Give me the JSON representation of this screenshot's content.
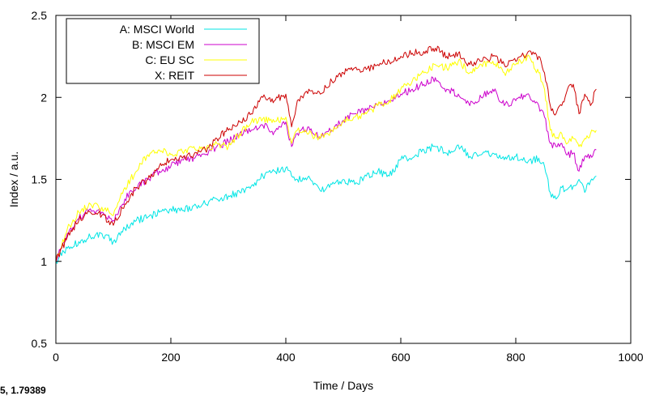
{
  "status_readout": "5, 1.79389",
  "colors": {
    "A": "#00e5e5",
    "B": "#cc00cc",
    "C": "#ffff00",
    "X": "#cc0000",
    "frame": "#000000"
  },
  "chart_data": {
    "type": "line",
    "title": "",
    "xlabel": "Time / Days",
    "ylabel": "Index / a.u.",
    "xlim": [
      0,
      1000
    ],
    "ylim": [
      0.5,
      2.5
    ],
    "xticks": [
      0,
      200,
      400,
      600,
      800,
      1000
    ],
    "xtick_labels": [
      "0",
      "200",
      "400",
      "600",
      "800",
      "1000"
    ],
    "yticks": [
      0.5,
      1,
      1.5,
      2,
      2.5
    ],
    "ytick_labels": [
      "0.5",
      "1",
      "1.5",
      "2",
      "2.5"
    ],
    "grid": false,
    "legend_position": "top-left",
    "x": [
      0,
      20,
      40,
      60,
      80,
      100,
      120,
      140,
      160,
      180,
      200,
      220,
      240,
      260,
      280,
      300,
      320,
      340,
      360,
      380,
      400,
      410,
      420,
      440,
      460,
      480,
      500,
      520,
      540,
      560,
      580,
      600,
      620,
      640,
      660,
      680,
      700,
      720,
      740,
      760,
      780,
      800,
      820,
      840,
      850,
      860,
      870,
      880,
      890,
      900,
      910,
      920,
      930,
      940
    ],
    "series": [
      {
        "name": "A: MSCI World",
        "color_key": "A",
        "values": [
          1.0,
          1.08,
          1.12,
          1.15,
          1.17,
          1.12,
          1.2,
          1.25,
          1.27,
          1.3,
          1.32,
          1.31,
          1.34,
          1.35,
          1.38,
          1.4,
          1.42,
          1.46,
          1.52,
          1.55,
          1.57,
          1.52,
          1.5,
          1.52,
          1.43,
          1.47,
          1.5,
          1.47,
          1.52,
          1.55,
          1.52,
          1.62,
          1.63,
          1.68,
          1.7,
          1.66,
          1.71,
          1.64,
          1.65,
          1.66,
          1.62,
          1.64,
          1.6,
          1.63,
          1.58,
          1.42,
          1.38,
          1.45,
          1.44,
          1.46,
          1.5,
          1.42,
          1.49,
          1.52
        ]
      },
      {
        "name": "B: MSCI EM",
        "color_key": "B",
        "values": [
          1.0,
          1.17,
          1.26,
          1.32,
          1.3,
          1.25,
          1.38,
          1.45,
          1.5,
          1.55,
          1.58,
          1.62,
          1.63,
          1.65,
          1.7,
          1.73,
          1.78,
          1.8,
          1.83,
          1.79,
          1.85,
          1.7,
          1.78,
          1.82,
          1.75,
          1.8,
          1.86,
          1.9,
          1.92,
          1.95,
          1.98,
          2.02,
          2.05,
          2.08,
          2.12,
          2.05,
          2.02,
          1.95,
          2.0,
          2.05,
          1.95,
          1.98,
          2.02,
          1.95,
          1.88,
          1.72,
          1.7,
          1.72,
          1.65,
          1.66,
          1.55,
          1.64,
          1.65,
          1.68
        ]
      },
      {
        "name": "C: EU SC",
        "color_key": "C",
        "values": [
          1.0,
          1.2,
          1.3,
          1.35,
          1.33,
          1.28,
          1.45,
          1.55,
          1.65,
          1.68,
          1.65,
          1.67,
          1.7,
          1.68,
          1.72,
          1.7,
          1.78,
          1.85,
          1.87,
          1.85,
          1.88,
          1.72,
          1.8,
          1.78,
          1.75,
          1.8,
          1.85,
          1.88,
          1.9,
          1.95,
          1.98,
          2.05,
          2.1,
          2.15,
          2.2,
          2.18,
          2.22,
          2.15,
          2.2,
          2.22,
          2.15,
          2.2,
          2.25,
          2.15,
          2.05,
          1.8,
          1.75,
          1.78,
          1.72,
          1.75,
          1.7,
          1.75,
          1.78,
          1.8
        ]
      },
      {
        "name": "X: REIT",
        "color_key": "X",
        "values": [
          1.0,
          1.15,
          1.25,
          1.3,
          1.28,
          1.22,
          1.35,
          1.45,
          1.5,
          1.58,
          1.62,
          1.63,
          1.65,
          1.68,
          1.75,
          1.8,
          1.85,
          1.9,
          2.0,
          1.98,
          2.02,
          1.82,
          1.98,
          2.05,
          2.02,
          2.1,
          2.15,
          2.18,
          2.17,
          2.2,
          2.22,
          2.25,
          2.27,
          2.28,
          2.3,
          2.25,
          2.27,
          2.2,
          2.22,
          2.25,
          2.2,
          2.22,
          2.27,
          2.25,
          2.15,
          1.95,
          1.9,
          1.95,
          2.05,
          2.08,
          1.9,
          2.02,
          1.95,
          2.05
        ]
      }
    ]
  }
}
